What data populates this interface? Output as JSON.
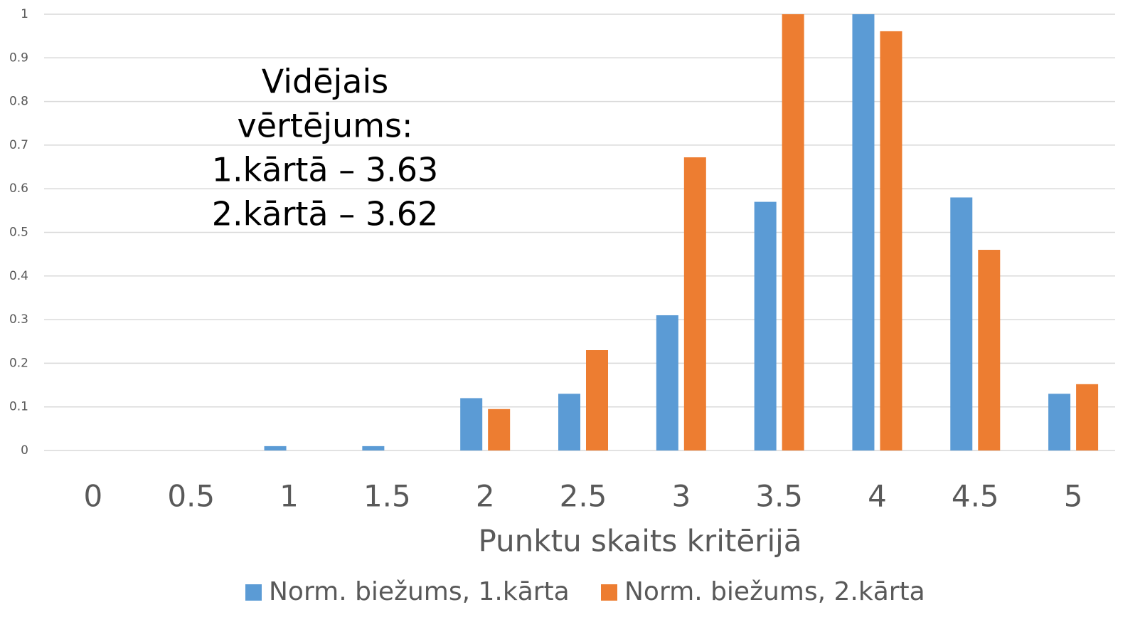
{
  "chart_data": {
    "type": "bar",
    "annotation": [
      "Vidējais",
      "vērtējums:",
      "1.kārtā – 3.63",
      "2.kārtā – 3.62"
    ],
    "x_label": "Punktu skaits kritērijā",
    "categories": [
      "0",
      "0.5",
      "1",
      "1.5",
      "2",
      "2.5",
      "3",
      "3.5",
      "4",
      "4.5",
      "5"
    ],
    "series": [
      {
        "name": "Norm. biežums, 1.kārta",
        "color": "#5b9bd5",
        "values": [
          0,
          0,
          0.01,
          0.01,
          0.12,
          0.13,
          0.31,
          0.57,
          1,
          0.58,
          0.13
        ]
      },
      {
        "name": "Norm. biežums, 2.kārta",
        "color": "#ed7d31",
        "values": [
          0,
          0,
          0,
          0,
          0.095,
          0.23,
          0.672,
          1,
          0.961,
          0.46,
          0.152
        ]
      }
    ],
    "ylim": [
      0,
      1
    ],
    "yticks": [
      0,
      0.1,
      0.2,
      0.3,
      0.4,
      0.5,
      0.6,
      0.7,
      0.8,
      0.9,
      1
    ],
    "grid": true,
    "legend": "bottom"
  }
}
